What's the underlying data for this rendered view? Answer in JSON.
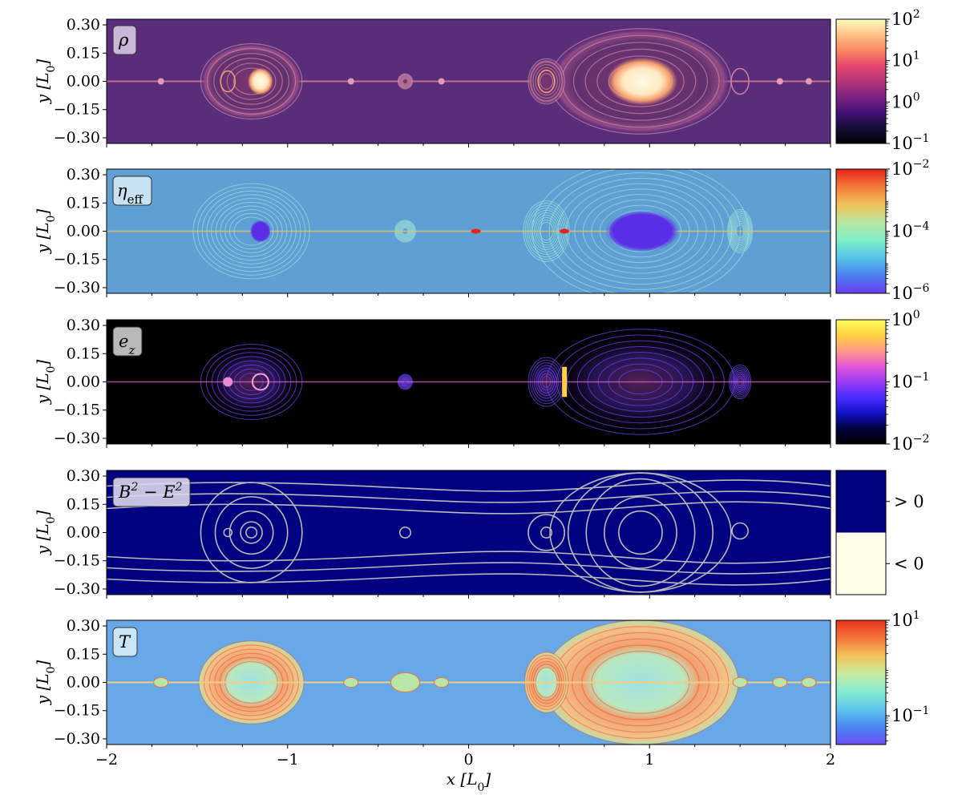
{
  "chart_data": [
    {
      "type": "heatmap",
      "variable": "ρ",
      "variable_display": "ρ",
      "title": "",
      "ylabel": "y [L",
      "ylabel_sub": "0",
      "ylabel_close": "]",
      "xlim": [
        -2,
        2
      ],
      "ylim": [
        -0.33,
        0.33
      ],
      "yticks": [
        "0.30",
        "0.15",
        "0.00",
        "−0.15",
        "−0.30"
      ],
      "ytick_values": [
        0.3,
        0.15,
        0.0,
        -0.15,
        -0.3
      ],
      "colormap": "magma",
      "colorbar": {
        "scale": "log",
        "ticks": [
          {
            "base": "10",
            "exp": "2",
            "value": 2
          },
          {
            "base": "10",
            "exp": "1",
            "value": 1
          },
          {
            "base": "10",
            "exp": "0",
            "value": 0
          },
          {
            "base": "10",
            "exp": "−1",
            "value": -1
          }
        ],
        "range": [
          -1,
          2
        ]
      },
      "structures": [
        {
          "name": "left-plasmoid",
          "x": -1.2,
          "y": 0.0,
          "rx": 0.28,
          "ry": 0.2,
          "peak": 2.0
        },
        {
          "name": "right-plasmoid",
          "x": 0.95,
          "y": 0.0,
          "rx": 0.5,
          "ry": 0.28,
          "peak": 2.0
        },
        {
          "name": "small-plasmoid",
          "x": 0.43,
          "y": 0.0,
          "rx": 0.1,
          "ry": 0.12,
          "peak": 1.0
        },
        {
          "name": "small-plasmoid",
          "x": -0.35,
          "y": 0.0,
          "rx": 0.04,
          "ry": 0.04,
          "peak": 0.7
        }
      ]
    },
    {
      "type": "heatmap",
      "variable": "η_eff",
      "variable_display": "η",
      "variable_sub": "eff",
      "ylabel": "y [L",
      "ylabel_sub": "0",
      "ylabel_close": "]",
      "xlim": [
        -2,
        2
      ],
      "ylim": [
        -0.33,
        0.33
      ],
      "yticks": [
        "0.30",
        "0.15",
        "0.00",
        "−0.15",
        "−0.30"
      ],
      "ytick_values": [
        0.3,
        0.15,
        0.0,
        -0.15,
        -0.3
      ],
      "colormap": "rainbow",
      "colorbar": {
        "scale": "log",
        "ticks": [
          {
            "base": "10",
            "exp": "−2",
            "value": -2
          },
          {
            "base": "10",
            "exp": "−4",
            "value": -4
          },
          {
            "base": "10",
            "exp": "−6",
            "value": -6
          }
        ],
        "range": [
          -6,
          -2
        ]
      }
    },
    {
      "type": "heatmap",
      "variable": "e_z",
      "variable_display": "e",
      "variable_sub": "z",
      "ylabel": "y [L",
      "ylabel_sub": "0",
      "ylabel_close": "]",
      "xlim": [
        -2,
        2
      ],
      "ylim": [
        -0.33,
        0.33
      ],
      "yticks": [
        "0.30",
        "0.15",
        "0.00",
        "−0.15",
        "−0.30"
      ],
      "ytick_values": [
        0.3,
        0.15,
        0.0,
        -0.15,
        -0.3
      ],
      "colormap": "gnuplot2",
      "colorbar": {
        "scale": "log",
        "ticks": [
          {
            "base": "10",
            "exp": "0",
            "value": 0
          },
          {
            "base": "10",
            "exp": "−1",
            "value": -1
          },
          {
            "base": "10",
            "exp": "−2",
            "value": -2
          }
        ],
        "range": [
          -2,
          0
        ]
      }
    },
    {
      "type": "heatmap",
      "variable": "B²−E²",
      "variable_display": "B",
      "ylabel": "y [L",
      "ylabel_sub": "0",
      "ylabel_close": "]",
      "xlim": [
        -2,
        2
      ],
      "ylim": [
        -0.33,
        0.33
      ],
      "yticks": [
        "0.30",
        "0.15",
        "0.00",
        "−0.15",
        "−0.30"
      ],
      "ytick_values": [
        0.3,
        0.15,
        0.0,
        -0.15,
        -0.3
      ],
      "colormap": "binary-sign",
      "colorbar": {
        "scale": "categorical",
        "categories": [
          {
            "label": "> 0",
            "color": "#000080"
          },
          {
            "label": "< 0",
            "color": "#fffdea"
          }
        ]
      },
      "field_lines": "magnetic flux contours (gray)"
    },
    {
      "type": "heatmap",
      "variable": "T",
      "variable_display": "T",
      "ylabel": "y [L",
      "ylabel_sub": "0",
      "ylabel_close": "]",
      "xlabel": "x [L",
      "xlabel_sub": "0",
      "xlabel_close": "]",
      "xlim": [
        -2,
        2
      ],
      "ylim": [
        -0.33,
        0.33
      ],
      "xticks": [
        "−2",
        "−1",
        "0",
        "1",
        "2"
      ],
      "xtick_values": [
        -2,
        -1,
        0,
        1,
        2
      ],
      "yticks": [
        "0.30",
        "0.15",
        "0.00",
        "−0.15",
        "−0.30"
      ],
      "ytick_values": [
        0.3,
        0.15,
        0.0,
        -0.15,
        -0.3
      ],
      "colormap": "rainbow",
      "colorbar": {
        "scale": "log",
        "ticks": [
          {
            "base": "10",
            "exp": "1",
            "value": 1
          },
          {
            "base": "10",
            "exp": "−1",
            "value": -1
          }
        ],
        "range": [
          -1.6,
          1
        ]
      }
    }
  ],
  "labels": {
    "b2e2_sup": "2",
    "b2e2_minus": " − E"
  },
  "colors": {
    "magma_bg": "#5a2d7a",
    "magma_core": "#fff3c8",
    "magma_warm": "#f0925a",
    "eta_bg": "#5f9fd4",
    "eta_core": "#5a30e0",
    "ez_bg": "#000000",
    "ez_glow": "#7a3cff",
    "navy": "#000080",
    "cream": "#fffdea",
    "flux_line": "#b9b9b9",
    "temp_bg": "#69a8e8",
    "temp_hot": "#f2733c",
    "temp_mid": "#b8e6a8"
  }
}
